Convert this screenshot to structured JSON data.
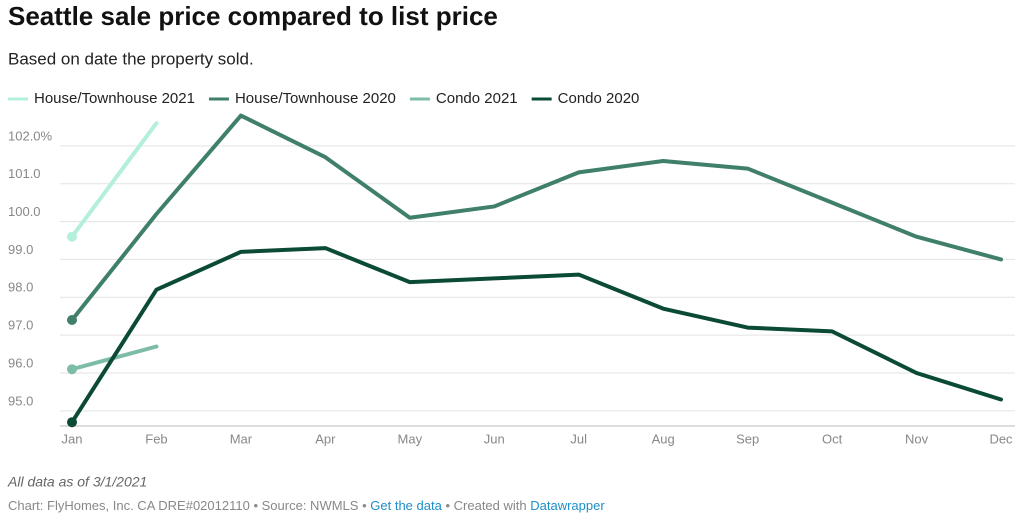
{
  "chart_data": {
    "type": "line",
    "title": "Seattle sale price compared to list price",
    "subtitle": "Based on date the property sold.",
    "categories": [
      "Jan",
      "Feb",
      "Mar",
      "Apr",
      "May",
      "Jun",
      "Jul",
      "Aug",
      "Sep",
      "Oct",
      "Nov",
      "Dec"
    ],
    "series": [
      {
        "name": "House/Townhouse 2021",
        "color": "#b3efdb",
        "values": [
          99.6,
          102.6,
          null,
          null,
          null,
          null,
          null,
          null,
          null,
          null,
          null,
          null
        ]
      },
      {
        "name": "House/Townhouse 2020",
        "color": "#3f7f6b",
        "values": [
          97.4,
          100.2,
          102.8,
          101.7,
          100.1,
          100.4,
          101.3,
          101.6,
          101.4,
          100.5,
          99.6,
          99.0
        ]
      },
      {
        "name": "Condo 2021",
        "color": "#7dbda5",
        "values": [
          96.1,
          96.7,
          null,
          null,
          null,
          null,
          null,
          null,
          null,
          null,
          null,
          null
        ]
      },
      {
        "name": "Condo 2020",
        "color": "#0b4a37",
        "values": [
          94.7,
          98.2,
          99.2,
          99.3,
          98.4,
          98.5,
          98.6,
          97.7,
          97.2,
          97.1,
          96.0,
          95.3
        ]
      }
    ],
    "ylim": [
      94.6,
      103
    ],
    "yticks": [
      {
        "value": 95,
        "label": "95.0"
      },
      {
        "value": 96,
        "label": "96.0"
      },
      {
        "value": 97,
        "label": "97.0"
      },
      {
        "value": 98,
        "label": "98.0"
      },
      {
        "value": 99,
        "label": "99.0"
      },
      {
        "value": 100,
        "label": "100.0"
      },
      {
        "value": 101,
        "label": "101.0"
      },
      {
        "value": 102,
        "label": "102.0%"
      }
    ],
    "grid": true,
    "legend": "top",
    "footer": {
      "note": "All data as of 3/1/2021",
      "credit": "Chart: FlyHomes, Inc. CA DRE#02012110",
      "separator": "•",
      "source": "Source: NWMLS",
      "link": "Get the data",
      "created": "Created with",
      "tool": "Datawrapper"
    }
  }
}
